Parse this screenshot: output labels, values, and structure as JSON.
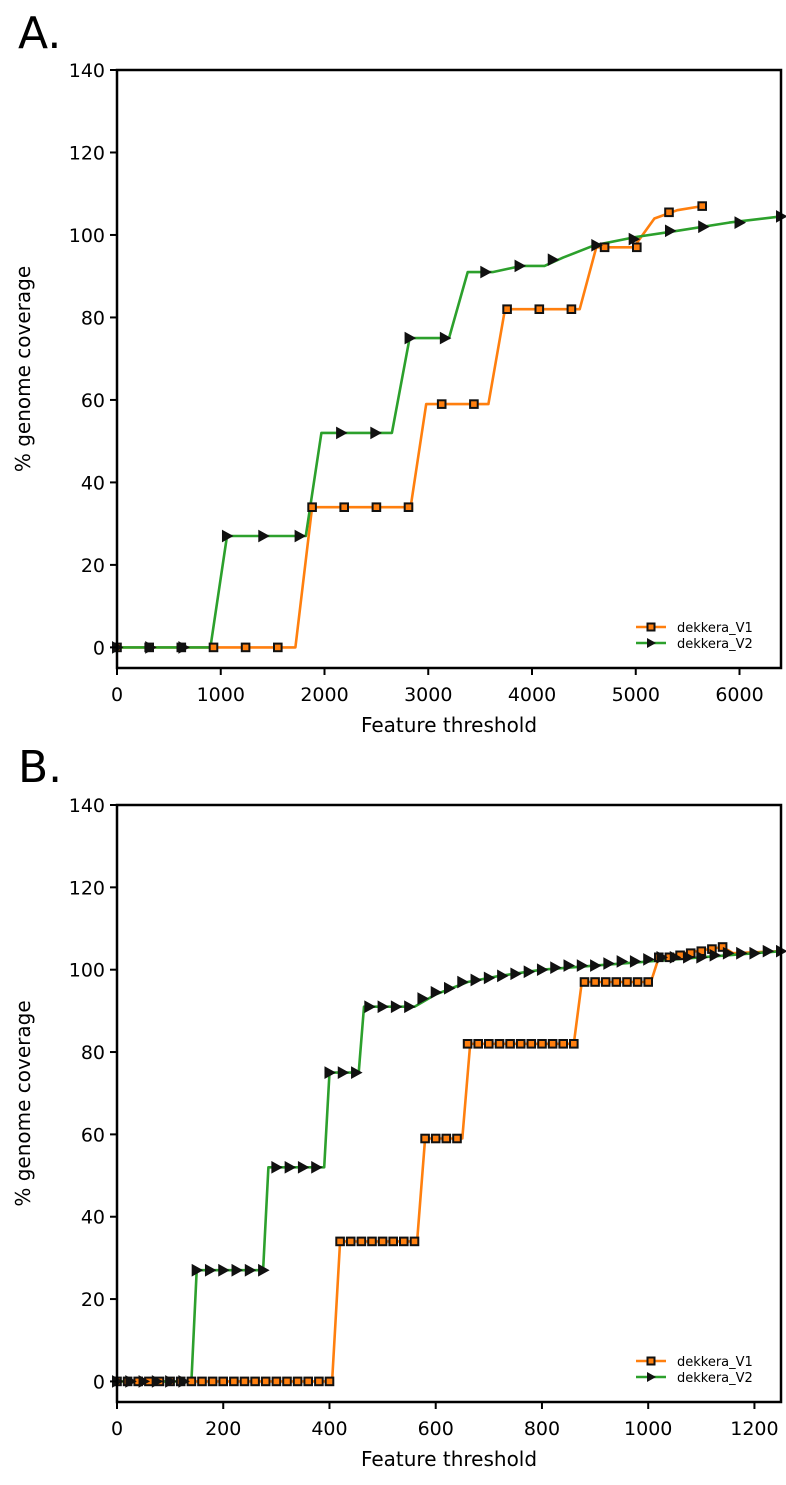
{
  "chart_data": [
    {
      "panel_label": "A.",
      "type": "line",
      "xlabel": "Feature threshold",
      "ylabel": "% genome coverage",
      "xlim": [
        0,
        6400
      ],
      "ylim": [
        -5,
        140
      ],
      "xticks": [
        0,
        1000,
        2000,
        3000,
        4000,
        5000,
        6000
      ],
      "yticks": [
        0,
        20,
        40,
        60,
        80,
        100,
        120,
        140
      ],
      "grid": false,
      "legend_position": "lower-right",
      "series": [
        {
          "name": "dekkera_V1",
          "color": "#ff7f0e",
          "marker": "square",
          "x": [
            0,
            1720,
            1880,
            2830,
            2980,
            3580,
            3740,
            4460,
            4620,
            4980,
            5180,
            5400,
            5640
          ],
          "y": [
            0,
            0,
            34,
            34,
            59,
            59,
            82,
            82,
            97,
            97,
            104,
            106,
            107
          ],
          "marker_x": [
            0,
            310,
            620,
            930,
            1240,
            1550,
            1880,
            2190,
            2500,
            2810,
            3130,
            3440,
            3760,
            4070,
            4380,
            4700,
            5010,
            5320,
            5640
          ],
          "marker_y": [
            0,
            0,
            0,
            0,
            0,
            0,
            34,
            34,
            34,
            34,
            59,
            59,
            82,
            82,
            82,
            97,
            97,
            105.5,
            107
          ]
        },
        {
          "name": "dekkera_V2",
          "color": "#2ca02c",
          "marker": "triangle-right",
          "x": [
            0,
            900,
            1060,
            1820,
            1970,
            2650,
            2820,
            3200,
            3380,
            3620,
            3900,
            4120,
            4300,
            4600,
            5000,
            5400,
            5900,
            6400
          ],
          "y": [
            0,
            0,
            27,
            27,
            52,
            52,
            75,
            75,
            91,
            91,
            92.5,
            92.5,
            94.5,
            97.5,
            99.5,
            101,
            103,
            104.5
          ],
          "marker_x": [
            0,
            320,
            640,
            1060,
            1410,
            1760,
            2160,
            2490,
            2820,
            3160,
            3550,
            3880,
            4200,
            4620,
            4980,
            5330,
            5650,
            6000,
            6400
          ],
          "marker_y": [
            0,
            0,
            0,
            27,
            27,
            27,
            52,
            52,
            75,
            75,
            91,
            92.5,
            94,
            97.5,
            99,
            101,
            102,
            103,
            104.5
          ]
        }
      ]
    },
    {
      "panel_label": "B.",
      "type": "line",
      "xlabel": "Feature threshold",
      "ylabel": "% genome coverage",
      "xlim": [
        0,
        1250
      ],
      "ylim": [
        -5,
        140
      ],
      "xticks": [
        0,
        200,
        400,
        600,
        800,
        1000,
        1200
      ],
      "yticks": [
        0,
        20,
        40,
        60,
        80,
        100,
        120,
        140
      ],
      "grid": false,
      "legend_position": "lower-right",
      "series": [
        {
          "name": "dekkera_V1",
          "color": "#ff7f0e",
          "marker": "square",
          "x": [
            0,
            405,
            420,
            565,
            580,
            650,
            665,
            860,
            875,
            1005,
            1020,
            1140,
            1160,
            1250
          ],
          "y": [
            0,
            0,
            34,
            34,
            59,
            59,
            82,
            82,
            97,
            97,
            103,
            105.5,
            104,
            104.5
          ],
          "marker_x": [
            0,
            20,
            40,
            60,
            80,
            100,
            120,
            140,
            160,
            180,
            200,
            220,
            240,
            260,
            280,
            300,
            320,
            340,
            360,
            380,
            400,
            420,
            440,
            460,
            480,
            500,
            520,
            540,
            560,
            580,
            600,
            620,
            640,
            660,
            680,
            700,
            720,
            740,
            760,
            780,
            800,
            820,
            840,
            860,
            880,
            900,
            920,
            940,
            960,
            980,
            1000,
            1020,
            1040,
            1060,
            1080,
            1100,
            1120,
            1140
          ],
          "marker_y": [
            0,
            0,
            0,
            0,
            0,
            0,
            0,
            0,
            0,
            0,
            0,
            0,
            0,
            0,
            0,
            0,
            0,
            0,
            0,
            0,
            0,
            34,
            34,
            34,
            34,
            34,
            34,
            34,
            34,
            59,
            59,
            59,
            59,
            82,
            82,
            82,
            82,
            82,
            82,
            82,
            82,
            82,
            82,
            82,
            97,
            97,
            97,
            97,
            97,
            97,
            97,
            103,
            103,
            103.5,
            104,
            104.5,
            105,
            105.5
          ]
        },
        {
          "name": "dekkera_V2",
          "color": "#2ca02c",
          "marker": "triangle-right",
          "x": [
            0,
            140,
            150,
            275,
            285,
            390,
            400,
            455,
            465,
            560,
            600,
            660,
            720,
            800,
            900,
            1000,
            1100,
            1250
          ],
          "y": [
            0,
            0,
            27,
            27,
            52,
            52,
            75,
            75,
            91,
            91,
            94,
            97,
            98.5,
            100,
            101,
            102,
            103,
            104.5
          ],
          "marker_x": [
            0,
            25,
            50,
            75,
            100,
            125,
            150,
            175,
            200,
            225,
            250,
            275,
            300,
            325,
            350,
            375,
            400,
            425,
            450,
            475,
            500,
            525,
            550,
            575,
            600,
            625,
            650,
            675,
            700,
            725,
            750,
            775,
            800,
            825,
            850,
            875,
            900,
            925,
            950,
            975,
            1000,
            1025,
            1050,
            1075,
            1100,
            1125,
            1150,
            1175,
            1200,
            1225,
            1250
          ],
          "marker_y": [
            0,
            0,
            0,
            0,
            0,
            0,
            27,
            27,
            27,
            27,
            27,
            27,
            52,
            52,
            52,
            52,
            75,
            75,
            75,
            91,
            91,
            91,
            91,
            93,
            94.5,
            95.5,
            97,
            97.5,
            98,
            98.5,
            99,
            99.5,
            100,
            100.5,
            101,
            101,
            101,
            101.5,
            102,
            102,
            102.5,
            103,
            103,
            103,
            103,
            103.5,
            104,
            104,
            104,
            104.5,
            104.5
          ]
        }
      ]
    }
  ]
}
